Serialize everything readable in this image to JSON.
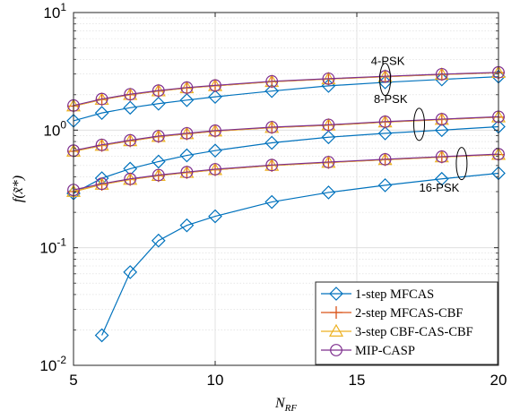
{
  "chart_data": {
    "type": "line",
    "xlabel": "N_RF",
    "ylabel": "f(x̃*)",
    "xlim": [
      5,
      20
    ],
    "ylim": [
      0.01,
      10
    ],
    "yscale": "log",
    "grid": true,
    "x_ticks": [
      5,
      10,
      15,
      20
    ],
    "y_ticks": [
      {
        "base": "10",
        "exp": "-2"
      },
      {
        "base": "10",
        "exp": "-1"
      },
      {
        "base": "10",
        "exp": "0"
      },
      {
        "base": "10",
        "exp": "1"
      }
    ],
    "legend_position": "bottom-right",
    "annotations": [
      "4-PSK",
      "8-PSK",
      "16-PSK"
    ],
    "series": [
      {
        "name": "1-step MFCAS",
        "color": "#0072BD",
        "marker": "diamond",
        "groups": {
          "4-PSK": {
            "x": [
              5,
              6,
              7,
              8,
              9,
              10,
              12,
              14,
              16,
              18,
              20
            ],
            "y": [
              1.2,
              1.4,
              1.55,
              1.68,
              1.8,
              1.92,
              2.15,
              2.38,
              2.55,
              2.7,
              2.85
            ]
          },
          "8-PSK": {
            "x": [
              5,
              6,
              7,
              8,
              9,
              10,
              12,
              14,
              16,
              18,
              20
            ],
            "y": [
              0.29,
              0.39,
              0.47,
              0.54,
              0.61,
              0.67,
              0.78,
              0.87,
              0.94,
              1.0,
              1.07
            ]
          },
          "16-PSK": {
            "x": [
              6,
              7,
              8,
              9,
              10,
              12,
              14,
              16,
              18,
              20
            ],
            "y": [
              0.018,
              0.062,
              0.115,
              0.155,
              0.185,
              0.245,
              0.295,
              0.34,
              0.385,
              0.43
            ]
          }
        }
      },
      {
        "name": "2-step MFCAS-CBF",
        "color": "#D95319",
        "marker": "plus",
        "groups": {
          "4-PSK": {
            "x": [
              5,
              6,
              7,
              8,
              9,
              10,
              12,
              14,
              16,
              18,
              20
            ],
            "y": [
              1.6,
              1.82,
              2.0,
              2.15,
              2.28,
              2.38,
              2.58,
              2.72,
              2.85,
              2.97,
              3.08
            ]
          },
          "8-PSK": {
            "x": [
              5,
              6,
              7,
              8,
              9,
              10,
              12,
              14,
              16,
              18,
              20
            ],
            "y": [
              0.66,
              0.74,
              0.81,
              0.88,
              0.93,
              0.98,
              1.05,
              1.1,
              1.17,
              1.23,
              1.29
            ]
          },
          "16-PSK": {
            "x": [
              5,
              6,
              7,
              8,
              9,
              10,
              12,
              14,
              16,
              18,
              20
            ],
            "y": [
              0.3,
              0.345,
              0.38,
              0.41,
              0.435,
              0.46,
              0.5,
              0.53,
              0.56,
              0.59,
              0.62
            ]
          }
        }
      },
      {
        "name": "3-step CBF-CAS-CBF",
        "color": "#EDB120",
        "marker": "triangle",
        "groups": {
          "4-PSK": {
            "x": [
              5,
              6,
              7,
              8,
              9,
              10,
              12,
              14,
              16,
              18,
              20
            ],
            "y": [
              1.6,
              1.82,
              2.0,
              2.15,
              2.28,
              2.38,
              2.58,
              2.72,
              2.85,
              2.97,
              3.08
            ]
          },
          "8-PSK": {
            "x": [
              5,
              6,
              7,
              8,
              9,
              10,
              12,
              14,
              16,
              18,
              20
            ],
            "y": [
              0.66,
              0.74,
              0.81,
              0.88,
              0.93,
              0.98,
              1.05,
              1.1,
              1.17,
              1.23,
              1.29
            ]
          },
          "16-PSK": {
            "x": [
              5,
              6,
              7,
              8,
              9,
              10,
              12,
              14,
              16,
              18,
              20
            ],
            "y": [
              0.3,
              0.345,
              0.38,
              0.41,
              0.435,
              0.46,
              0.5,
              0.53,
              0.56,
              0.59,
              0.62
            ]
          }
        }
      },
      {
        "name": "MIP-CASP",
        "color": "#7E2F8E",
        "marker": "circle",
        "groups": {
          "4-PSK": {
            "x": [
              5,
              6,
              7,
              8,
              9,
              10,
              12,
              14,
              16,
              18,
              20
            ],
            "y": [
              1.62,
              1.84,
              2.02,
              2.17,
              2.3,
              2.4,
              2.6,
              2.74,
              2.87,
              2.99,
              3.1
            ]
          },
          "8-PSK": {
            "x": [
              5,
              6,
              7,
              8,
              9,
              10,
              12,
              14,
              16,
              18,
              20
            ],
            "y": [
              0.67,
              0.75,
              0.82,
              0.89,
              0.94,
              0.99,
              1.06,
              1.11,
              1.18,
              1.24,
              1.3
            ]
          },
          "16-PSK": {
            "x": [
              5,
              6,
              7,
              8,
              9,
              10,
              12,
              14,
              16,
              18,
              20
            ],
            "y": [
              0.31,
              0.35,
              0.385,
              0.415,
              0.44,
              0.465,
              0.505,
              0.535,
              0.565,
              0.595,
              0.625
            ]
          }
        }
      }
    ]
  }
}
